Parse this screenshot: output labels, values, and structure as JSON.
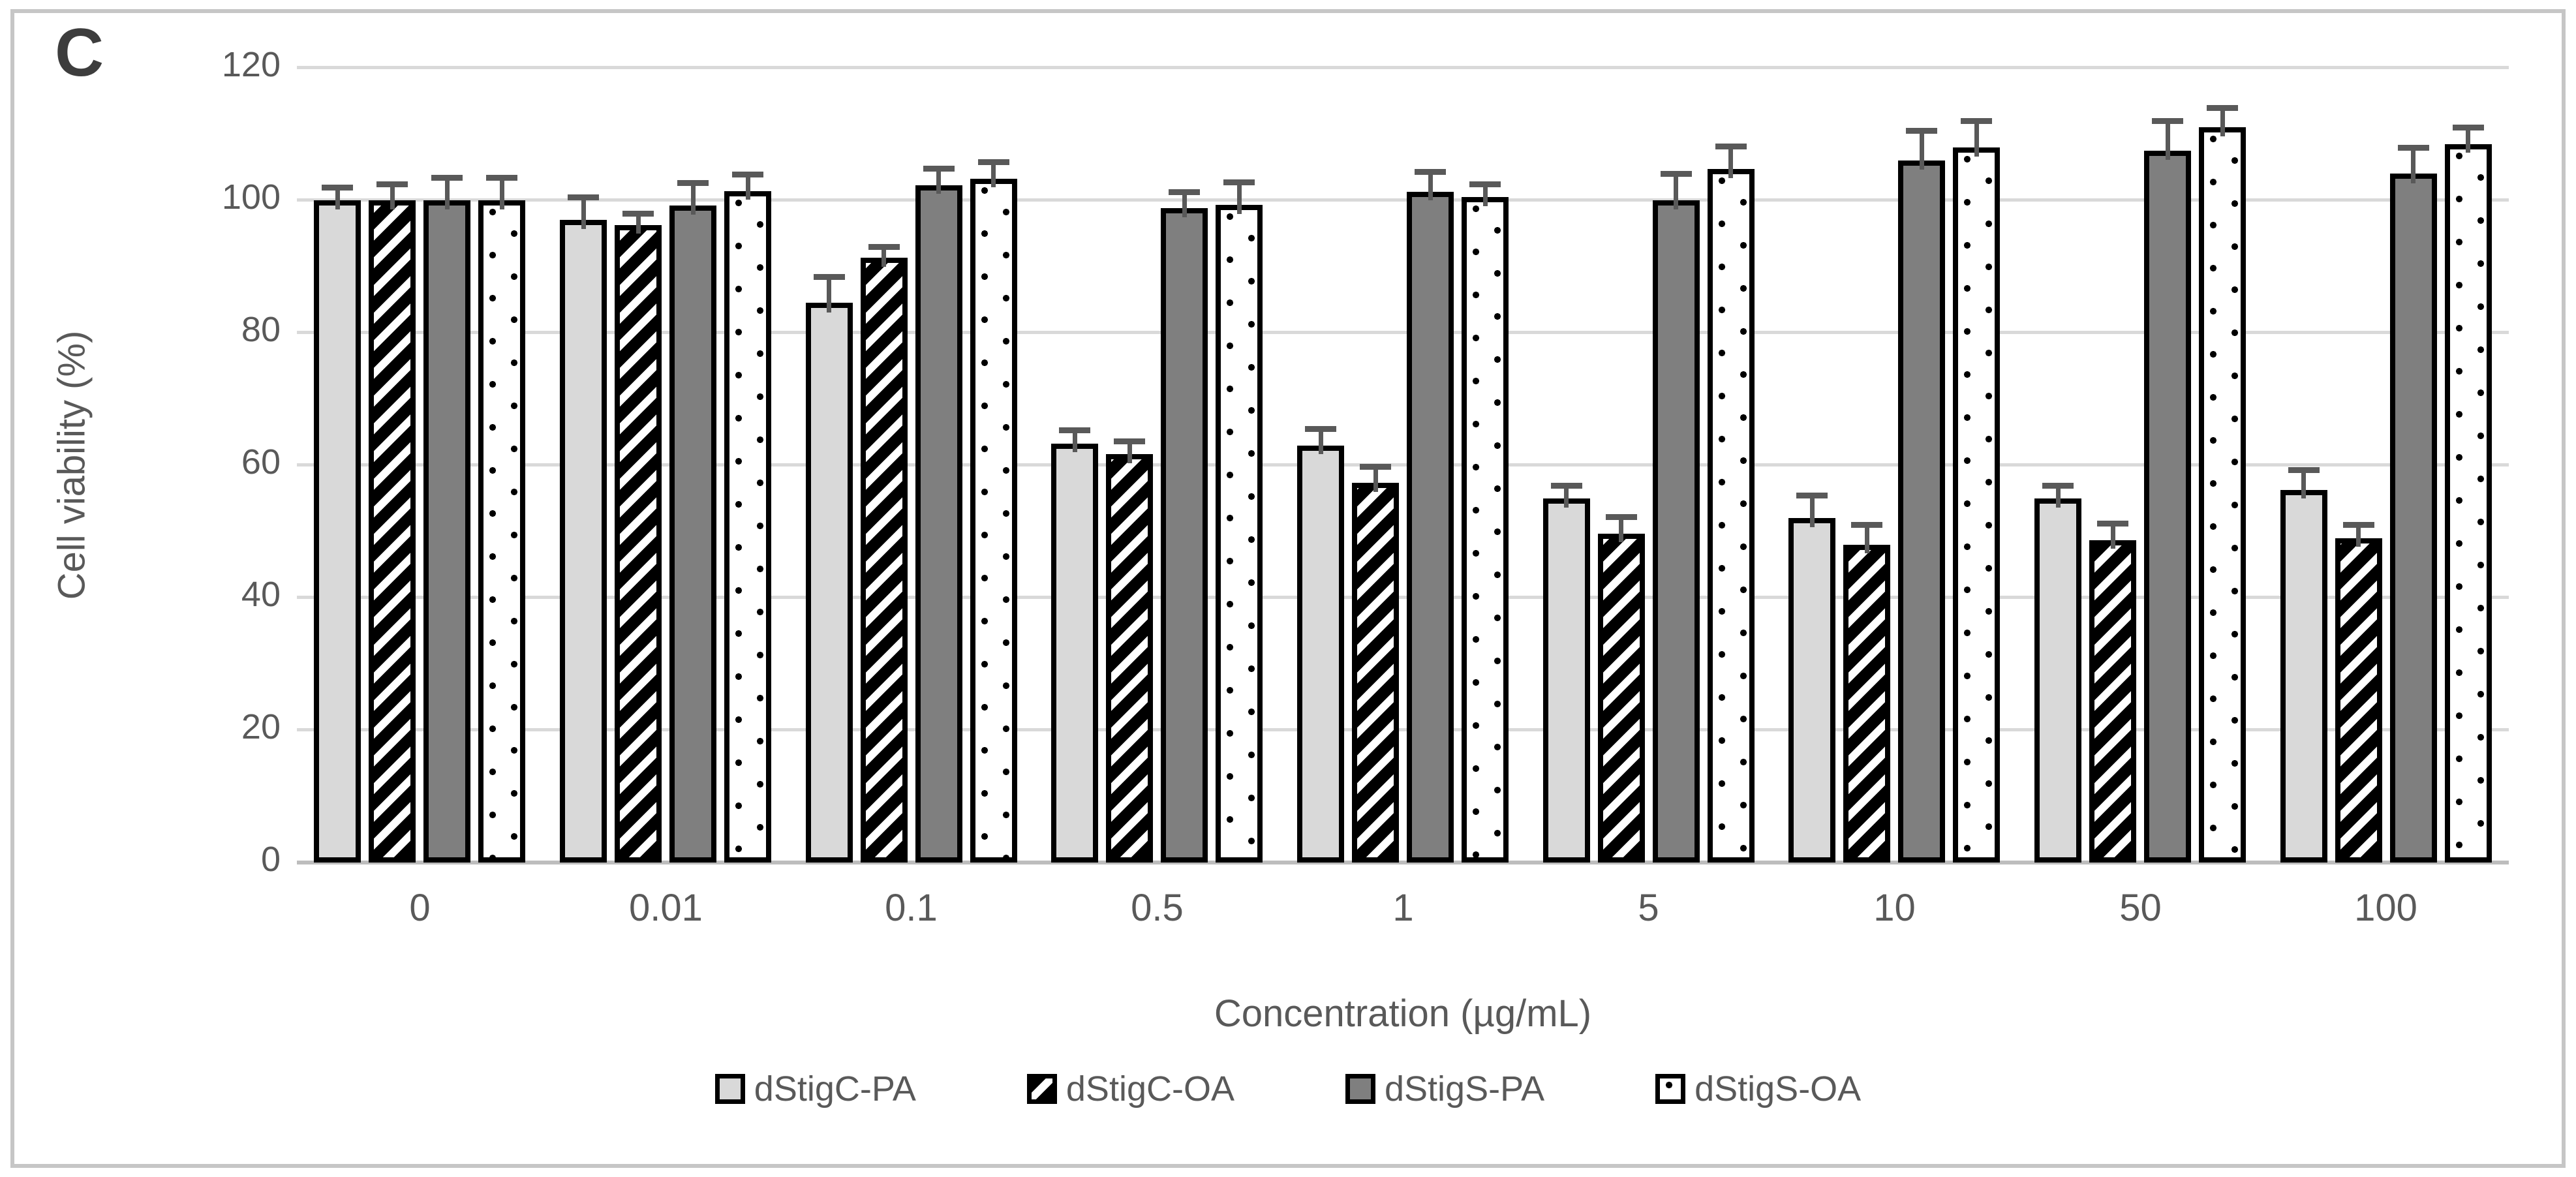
{
  "figure": {
    "panel_label": "C",
    "y_axis_title": "Cell viability (%)",
    "x_axis_title": "Concentration (µg/mL)"
  },
  "colors": {
    "text_gray": "#595959",
    "panel_label": "#3d3d3d",
    "gridline": "#d9d9d9",
    "axis_line": "#bdbdbd",
    "bar_border": "#000000",
    "series_light_gray": "#d9d9d9",
    "series_dark_gray": "#7f7f7f",
    "error_bar": "#595959",
    "frame_border": "#c6c6c6"
  },
  "chart_data": {
    "type": "bar",
    "title": "",
    "xlabel": "Concentration (µg/mL)",
    "ylabel": "Cell viability (%)",
    "categories": [
      "0",
      "0.01",
      "0.1",
      "0.5",
      "1",
      "5",
      "10",
      "50",
      "100"
    ],
    "ylim": [
      0,
      120
    ],
    "ytick_step": 20,
    "yticks": [
      0,
      20,
      40,
      60,
      80,
      100,
      120
    ],
    "grid": true,
    "legend_position": "bottom",
    "error_bars": "upper",
    "series": [
      {
        "name": "dStigC-PA",
        "pattern": "solid-light",
        "fill": "#d9d9d9",
        "values": [
          100,
          97,
          84.5,
          63.3,
          63,
          55,
          52,
          55,
          56.3
        ],
        "errors": [
          1.5,
          3,
          3.5,
          1.5,
          2,
          1.5,
          3,
          1.5,
          2.5
        ]
      },
      {
        "name": "dStigC-OA",
        "pattern": "diagonal-hatch",
        "fill": "#000000",
        "values": [
          100,
          96.3,
          91.3,
          61.7,
          57.3,
          49.7,
          48,
          48.7,
          49
        ],
        "errors": [
          2,
          1.2,
          1.2,
          1.5,
          2,
          2,
          2.5,
          2,
          1.5
        ]
      },
      {
        "name": "dStigS-PA",
        "pattern": "solid-dark",
        "fill": "#7f7f7f",
        "values": [
          100,
          99.2,
          102.3,
          98.8,
          101.3,
          100,
          106,
          107.5,
          104
        ],
        "errors": [
          3,
          3,
          2,
          2,
          2.5,
          3.5,
          4,
          4,
          3.5
        ]
      },
      {
        "name": "dStigS-OA",
        "pattern": "dots",
        "fill": "#ffffff",
        "values": [
          100,
          101.4,
          103.3,
          99.3,
          100.5,
          104.7,
          108,
          111,
          108.5
        ],
        "errors": [
          3,
          2,
          2,
          3,
          1.5,
          3,
          3.5,
          2.5,
          2
        ]
      }
    ]
  }
}
